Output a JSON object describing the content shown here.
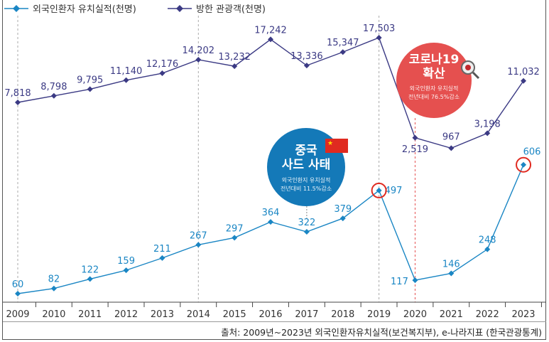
{
  "chart_data": {
    "type": "line",
    "categories": [
      "2009",
      "2010",
      "2011",
      "2012",
      "2013",
      "2014",
      "2015",
      "2016",
      "2017",
      "2018",
      "2019",
      "2020",
      "2021",
      "2022",
      "2023"
    ],
    "series": [
      {
        "name": "외국인환자 유치실적(천명)",
        "color": "#1a86c4",
        "values": [
          60,
          82,
          122,
          159,
          211,
          267,
          297,
          364,
          322,
          379,
          497,
          117,
          146,
          248,
          606
        ],
        "labels": [
          "60",
          "82",
          "122",
          "159",
          "211",
          "267",
          "297",
          "364",
          "322",
          "379",
          "497",
          "117",
          "146",
          "248",
          "606"
        ]
      },
      {
        "name": "방한 관광객(천명)",
        "color": "#3b3a84",
        "values": [
          7818,
          8798,
          9795,
          11140,
          12176,
          14202,
          13232,
          17242,
          13336,
          15347,
          17503,
          2519,
          967,
          3198,
          11032
        ],
        "labels": [
          "7,818",
          "8,798",
          "9,795",
          "11,140",
          "12,176",
          "14,202",
          "13,232",
          "17,242",
          "13,336",
          "15,347",
          "17,503",
          "2,519",
          "967",
          "3,198",
          "11,032"
        ]
      }
    ],
    "highlighted_points": [
      "2019",
      "2023"
    ],
    "legend_position": "top-left",
    "annotations": [
      {
        "year": "2017",
        "title1": "중국",
        "title2": "사드 사태",
        "line1": "외국인환지 유치실적",
        "line2": "전년대비 11.5%감소",
        "color": "#1479b8",
        "icon": "china-flag-icon"
      },
      {
        "year": "2020",
        "title1": "코로나19",
        "title2": "확산",
        "line1": "외국인환자 유치실적",
        "line2": "전년대비 76.5%감소",
        "color": "#e5504f",
        "icon": "virus-magnifier-icon"
      }
    ],
    "source": "출처: 2009년~2023년 외국인환자유치실적(보건복지부), e-나라지표 (한국관광통계)"
  }
}
